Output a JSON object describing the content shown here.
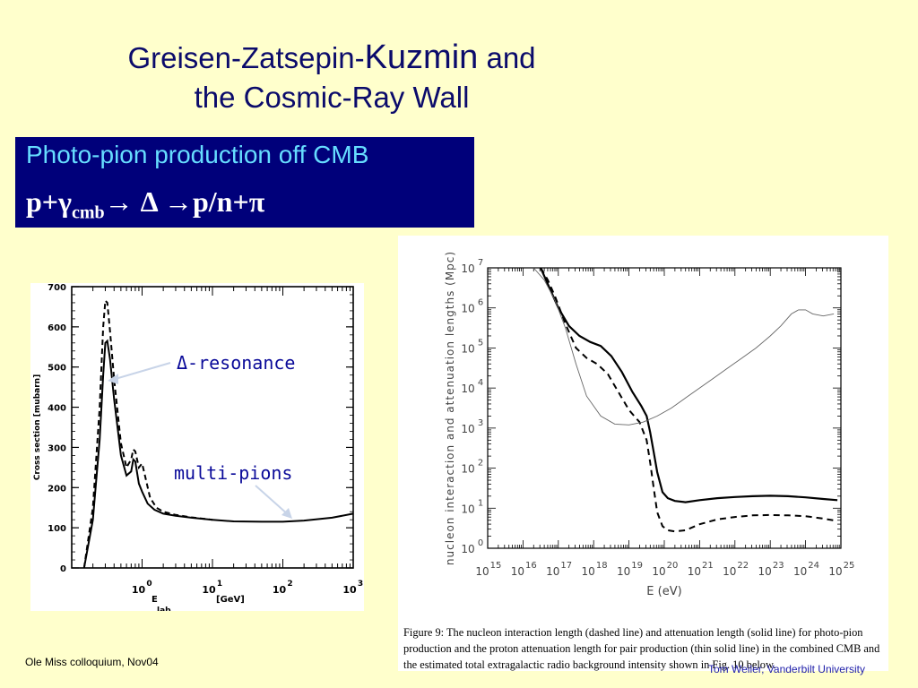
{
  "title": {
    "part1": "Greisen-Zatsepin-",
    "part2": "Kuzmin",
    "part3": " and",
    "line2": "the Cosmic-Ray Wall"
  },
  "box": {
    "line1": "Photo-pion production off CMB",
    "formula_a": "p+γ",
    "formula_sub": "cmb",
    "formula_b": "→ Δ →p/n+π"
  },
  "annotations": {
    "delta": "Δ-resonance",
    "multi": "multi-pions"
  },
  "footer_left": "Ole Miss colloquium, Nov04",
  "footer_right": "Tom Weiler, Vanderbilt University",
  "caption": "Figure 9: The nucleon interaction length (dashed line) and attenuation length (solid line) for photo-pion production and the proton attenuation length for pair production (thin solid line) in the combined CMB and the estimated total extragalactic radio background intensity shown in Fig. 10 below.",
  "chart_data": [
    {
      "type": "line",
      "xlabel": "E",
      "xlabel_sub": "lab",
      "xlabel_unit": "[GeV]",
      "ylabel": "Cross section [mubarn]",
      "xscale": "log",
      "xlim": [
        0.1,
        1000
      ],
      "ylim": [
        0,
        700
      ],
      "yticks": [
        "0",
        "100",
        "200",
        "300",
        "400",
        "500",
        "600",
        "700"
      ],
      "xticks": [
        {
          "base": "10",
          "exp": "0",
          "v": 1
        },
        {
          "base": "10",
          "exp": "1",
          "v": 10
        },
        {
          "base": "10",
          "exp": "2",
          "v": 100
        },
        {
          "base": "10",
          "exp": "3",
          "v": 1000
        }
      ],
      "series": [
        {
          "style": "solid",
          "x": [
            0.15,
            0.2,
            0.25,
            0.28,
            0.3,
            0.32,
            0.35,
            0.4,
            0.5,
            0.6,
            0.7,
            0.75,
            0.8,
            0.9,
            1.0,
            1.2,
            1.5,
            2,
            3,
            5,
            10,
            20,
            50,
            100,
            200,
            500,
            1000
          ],
          "y": [
            0,
            120,
            320,
            480,
            560,
            565,
            520,
            420,
            280,
            230,
            240,
            270,
            265,
            210,
            190,
            160,
            145,
            135,
            130,
            125,
            120,
            116,
            115,
            115,
            118,
            125,
            135
          ]
        },
        {
          "style": "dashed",
          "x": [
            0.15,
            0.2,
            0.25,
            0.28,
            0.3,
            0.32,
            0.35,
            0.4,
            0.5,
            0.6,
            0.7,
            0.75,
            0.8,
            0.9,
            1.0,
            1.1,
            1.3,
            1.6,
            2,
            3,
            5,
            10
          ],
          "y": [
            0,
            150,
            400,
            600,
            665,
            660,
            590,
            470,
            310,
            250,
            270,
            295,
            290,
            250,
            260,
            230,
            175,
            150,
            140,
            132,
            126,
            120
          ]
        }
      ]
    },
    {
      "type": "line",
      "xlabel": "E (eV)",
      "ylabel": "nucleon interaction and attenuation lengths (Mpc)",
      "xscale": "log",
      "yscale": "log",
      "xlim": [
        15,
        25
      ],
      "ylim": [
        0,
        7
      ],
      "xticks": [
        {
          "base": "10",
          "exp": "15",
          "v": 15
        },
        {
          "base": "10",
          "exp": "16",
          "v": 16
        },
        {
          "base": "10",
          "exp": "17",
          "v": 17
        },
        {
          "base": "10",
          "exp": "18",
          "v": 18
        },
        {
          "base": "10",
          "exp": "19",
          "v": 19
        },
        {
          "base": "10",
          "exp": "20",
          "v": 20
        },
        {
          "base": "10",
          "exp": "21",
          "v": 21
        },
        {
          "base": "10",
          "exp": "22",
          "v": 22
        },
        {
          "base": "10",
          "exp": "23",
          "v": 23
        },
        {
          "base": "10",
          "exp": "24",
          "v": 24
        },
        {
          "base": "10",
          "exp": "25",
          "v": 25
        }
      ],
      "yticks": [
        {
          "base": "10",
          "exp": "0",
          "v": 0
        },
        {
          "base": "10",
          "exp": "1",
          "v": 1
        },
        {
          "base": "10",
          "exp": "2",
          "v": 2
        },
        {
          "base": "10",
          "exp": "3",
          "v": 3
        },
        {
          "base": "10",
          "exp": "4",
          "v": 4
        },
        {
          "base": "10",
          "exp": "5",
          "v": 5
        },
        {
          "base": "10",
          "exp": "6",
          "v": 6
        },
        {
          "base": "10",
          "exp": "7",
          "v": 7
        }
      ],
      "series": [
        {
          "name": "attenuation length (photo-pion)",
          "style": "solid",
          "width": 2.2,
          "x": [
            16.5,
            16.7,
            17.0,
            17.3,
            17.6,
            17.9,
            18.2,
            18.5,
            18.8,
            19.1,
            19.35,
            19.5,
            19.6,
            19.7,
            19.8,
            19.95,
            20.1,
            20.3,
            20.6,
            21,
            21.5,
            22,
            22.5,
            23,
            23.5,
            24,
            24.5,
            24.9
          ],
          "y": [
            7.0,
            6.6,
            6.0,
            5.55,
            5.3,
            5.15,
            5.05,
            4.8,
            4.4,
            3.9,
            3.55,
            3.3,
            2.9,
            2.4,
            1.9,
            1.4,
            1.25,
            1.18,
            1.15,
            1.2,
            1.25,
            1.28,
            1.3,
            1.31,
            1.3,
            1.27,
            1.23,
            1.2
          ]
        },
        {
          "name": "interaction length",
          "style": "dashed",
          "width": 2,
          "x": [
            16.5,
            16.7,
            16.9,
            17.2,
            17.5,
            17.8,
            18.1,
            18.4,
            18.7,
            19.0,
            19.3,
            19.5,
            19.6,
            19.7,
            19.8,
            19.95,
            20.1,
            20.3,
            20.6,
            21,
            21.5,
            22,
            22.5,
            23,
            23.5,
            24,
            24.5,
            24.9
          ],
          "y": [
            7.0,
            6.7,
            6.3,
            5.6,
            5.0,
            4.75,
            4.6,
            4.35,
            3.9,
            3.45,
            3.15,
            2.7,
            2.15,
            1.5,
            0.9,
            0.55,
            0.45,
            0.42,
            0.45,
            0.6,
            0.72,
            0.78,
            0.82,
            0.83,
            0.82,
            0.8,
            0.74,
            0.68
          ]
        },
        {
          "name": "pair production",
          "style": "solid",
          "width": 0.9,
          "x": [
            16.3,
            16.6,
            16.9,
            17.2,
            17.5,
            17.8,
            18.2,
            18.6,
            19.0,
            19.4,
            19.8,
            20.2,
            20.6,
            21.0,
            21.4,
            21.8,
            22.2,
            22.6,
            23.0,
            23.3,
            23.6,
            23.8,
            24.0,
            24.2,
            24.5,
            24.8
          ],
          "y": [
            7.0,
            6.7,
            6.2,
            5.5,
            4.6,
            3.8,
            3.3,
            3.1,
            3.08,
            3.15,
            3.3,
            3.5,
            3.75,
            4.0,
            4.25,
            4.5,
            4.75,
            5.0,
            5.3,
            5.55,
            5.85,
            5.95,
            5.95,
            5.85,
            5.8,
            5.85
          ]
        }
      ]
    }
  ]
}
